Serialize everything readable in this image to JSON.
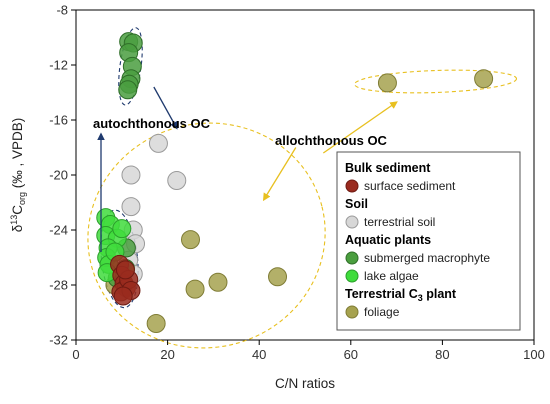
{
  "chart_data": {
    "type": "scatter",
    "xlabel": "C/N ratios",
    "ylabel": "δ¹³C_org (‰, VPDB)",
    "ylabel_parts": {
      "delta": "δ",
      "sup": "13",
      "base": "C",
      "sub": "org",
      "rest": "(‰ , VPDB)"
    },
    "xlim": [
      0,
      100
    ],
    "ylim": [
      -32,
      -8
    ],
    "x_ticks": [
      0,
      20,
      40,
      60,
      80,
      100
    ],
    "y_ticks": [
      -32,
      -28,
      -24,
      -20,
      -16,
      -12,
      -8
    ],
    "grid": false,
    "legend_position": "right",
    "legend": [
      {
        "group": "Bulk sediment",
        "items": [
          {
            "label": "surface sediment",
            "series": "surface_sediment"
          }
        ]
      },
      {
        "group": "Soil",
        "items": [
          {
            "label": "terrestrial soil",
            "series": "terrestrial_soil"
          }
        ]
      },
      {
        "group": "Aquatic plants",
        "items": [
          {
            "label": "submerged macrophyte",
            "series": "submerged_macrophyte"
          },
          {
            "label": "lake algae",
            "series": "lake_algae"
          }
        ]
      },
      {
        "group": "Terrestrial C₃ plant",
        "group_parts": {
          "base": "Terrestrial C",
          "sub": "3",
          "rest": " plant"
        },
        "items": [
          {
            "label": "foliage",
            "series": "foliage"
          }
        ]
      }
    ],
    "annotations": [
      {
        "text": "autochthonous OC"
      },
      {
        "text": "allochthonous OC"
      }
    ],
    "series": [
      {
        "key": "foliage",
        "color": "#a6a24f",
        "stroke": "#7f7c35",
        "opacity": 0.85,
        "points": [
          [
            8.5,
            -28.0
          ],
          [
            17.5,
            -30.8
          ],
          [
            25.0,
            -24.7
          ],
          [
            26.0,
            -28.3
          ],
          [
            31.0,
            -27.8
          ],
          [
            44.0,
            -27.4
          ],
          [
            68.0,
            -13.3
          ],
          [
            89.0,
            -13.0
          ]
        ]
      },
      {
        "key": "terrestrial_soil",
        "color": "#d7d7d7",
        "stroke": "#9a9a9a",
        "opacity": 0.85,
        "points": [
          [
            18.0,
            -17.7
          ],
          [
            12.0,
            -20.0
          ],
          [
            22.0,
            -20.4
          ],
          [
            12.0,
            -22.3
          ],
          [
            12.5,
            -24.0
          ],
          [
            13.0,
            -25.0
          ],
          [
            11.5,
            -26.2
          ],
          [
            12.5,
            -27.2
          ]
        ]
      },
      {
        "key": "submerged_macrophyte",
        "color": "#4a9e3f",
        "stroke": "#2f6e28",
        "opacity": 0.85,
        "points": [
          [
            11.5,
            -10.3
          ],
          [
            12.5,
            -10.4
          ],
          [
            11.5,
            -11.1
          ],
          [
            12.3,
            -12.1
          ],
          [
            12.0,
            -13.0
          ],
          [
            11.6,
            -13.4
          ],
          [
            11.3,
            -13.8
          ],
          [
            10.8,
            -26.8
          ],
          [
            9.0,
            -27.5
          ],
          [
            11.0,
            -25.3
          ]
        ]
      },
      {
        "key": "lake_algae",
        "color": "#3fdc3c",
        "stroke": "#2a9e2a",
        "opacity": 0.85,
        "points": [
          [
            6.5,
            -23.1
          ],
          [
            7.5,
            -23.6
          ],
          [
            6.5,
            -24.4
          ],
          [
            9.0,
            -24.6
          ],
          [
            7.0,
            -25.3
          ],
          [
            6.7,
            -26.0
          ],
          [
            7.2,
            -26.5
          ],
          [
            6.8,
            -27.1
          ],
          [
            10.0,
            -23.9
          ],
          [
            8.5,
            -25.6
          ]
        ]
      },
      {
        "key": "surface_sediment",
        "color": "#9a2b1f",
        "stroke": "#6e1a12",
        "opacity": 0.85,
        "points": [
          [
            9.5,
            -26.5
          ],
          [
            10.0,
            -27.3
          ],
          [
            10.5,
            -27.9
          ],
          [
            11.0,
            -28.2
          ],
          [
            9.8,
            -28.5
          ],
          [
            11.5,
            -27.6
          ],
          [
            10.8,
            -26.9
          ],
          [
            12.0,
            -28.4
          ],
          [
            10.3,
            -28.8
          ]
        ]
      }
    ]
  }
}
